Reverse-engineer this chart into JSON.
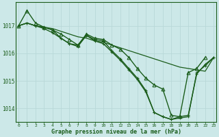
{
  "background_color": "#cce8e8",
  "grid_color": "#b8d8d8",
  "line_color": "#1a5c1a",
  "title": "Graphe pression niveau de la mer (hPa)",
  "ylim": [
    1013.5,
    1017.85
  ],
  "xlim": [
    -0.3,
    23.3
  ],
  "yticks": [
    1014,
    1015,
    1016,
    1017
  ],
  "xticks": [
    0,
    1,
    2,
    3,
    4,
    5,
    6,
    7,
    8,
    9,
    10,
    11,
    12,
    13,
    14,
    15,
    16,
    17,
    18,
    19,
    20,
    21,
    22,
    23
  ],
  "series": [
    {
      "x": [
        0,
        1,
        2,
        3,
        4,
        5,
        6,
        7,
        8,
        9,
        10,
        11,
        12,
        13,
        14,
        15,
        16,
        17,
        18,
        19,
        20,
        21,
        22
      ],
      "y": [
        1017.0,
        1017.55,
        1017.1,
        1016.95,
        1016.85,
        1016.7,
        1016.5,
        1016.3,
        1016.7,
        1016.55,
        1016.5,
        1016.3,
        1016.15,
        1015.85,
        1015.45,
        1015.1,
        1014.85,
        1014.7,
        1013.75,
        1013.7,
        1015.3,
        1015.45,
        1015.85
      ],
      "marker": "^",
      "markersize": 3.5,
      "linewidth": 1.0
    },
    {
      "x": [
        0,
        1,
        2,
        3,
        4,
        5,
        6,
        7,
        8,
        9,
        10,
        11,
        12,
        13,
        14,
        15,
        16,
        17,
        18,
        19,
        20,
        21,
        22,
        23
      ],
      "y": [
        1017.0,
        1017.1,
        1017.0,
        1016.95,
        1016.9,
        1016.8,
        1016.7,
        1016.6,
        1016.55,
        1016.45,
        1016.4,
        1016.3,
        1016.2,
        1016.1,
        1016.0,
        1015.9,
        1015.8,
        1015.7,
        1015.6,
        1015.5,
        1015.45,
        1015.4,
        1015.35,
        1015.85
      ],
      "marker": null,
      "markersize": 0,
      "linewidth": 0.9
    },
    {
      "x": [
        0,
        1,
        2,
        3,
        4,
        5,
        6,
        7,
        8,
        9,
        10,
        11,
        12,
        13,
        14,
        15,
        16,
        17,
        18,
        19,
        20,
        21,
        22,
        23
      ],
      "y": [
        1017.0,
        1017.1,
        1017.0,
        1016.95,
        1016.85,
        1016.55,
        1016.35,
        1016.25,
        1016.65,
        1016.45,
        1016.35,
        1016.05,
        1015.75,
        1015.4,
        1015.05,
        1014.6,
        1013.85,
        1013.7,
        1013.6,
        1013.7,
        1013.75,
        1015.25,
        1015.6,
        1015.85
      ],
      "marker": "+",
      "markersize": 3.5,
      "linewidth": 1.0
    },
    {
      "x": [
        0,
        1,
        2,
        3,
        4,
        5,
        6,
        7,
        8,
        9,
        10,
        11,
        12,
        13,
        14,
        15,
        16,
        17,
        18,
        19,
        20,
        21,
        22,
        23
      ],
      "y": [
        1017.0,
        1017.1,
        1017.0,
        1016.9,
        1016.75,
        1016.55,
        1016.35,
        1016.3,
        1016.65,
        1016.5,
        1016.45,
        1016.1,
        1015.8,
        1015.45,
        1015.1,
        1014.65,
        1013.85,
        1013.7,
        1013.6,
        1013.65,
        1013.7,
        1015.3,
        1015.55,
        1015.85
      ],
      "marker": "+",
      "markersize": 3.5,
      "linewidth": 1.0
    }
  ]
}
